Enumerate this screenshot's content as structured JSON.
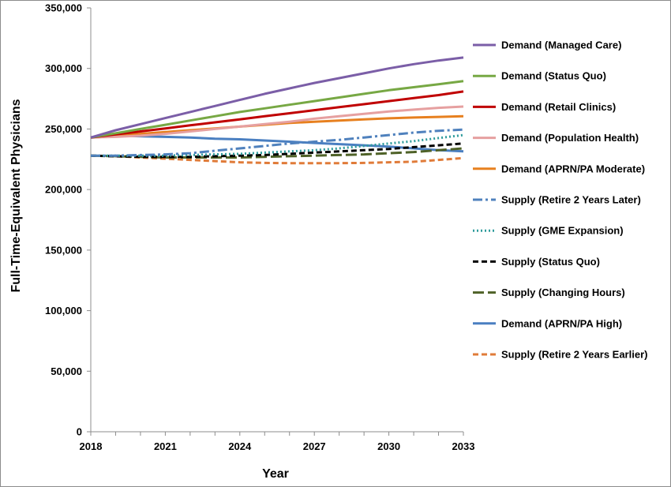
{
  "chart_data": {
    "type": "line",
    "title": "",
    "xlabel": "Year",
    "ylabel": "Full-Time-Equivalent Physicians",
    "xlim": [
      2018,
      2033
    ],
    "ylim": [
      0,
      350000
    ],
    "x_ticks": [
      2018,
      2021,
      2024,
      2027,
      2030,
      2033
    ],
    "x_tick_labels": [
      "2018",
      "2021",
      "2024",
      "2027",
      "2030",
      "2033"
    ],
    "y_ticks": [
      0,
      50000,
      100000,
      150000,
      200000,
      250000,
      300000,
      350000
    ],
    "y_tick_labels": [
      "0",
      "50,000",
      "100,000",
      "150,000",
      "200,000",
      "250,000",
      "300,000",
      "350,000"
    ],
    "grid": {
      "horizontal": false,
      "vertical": false
    },
    "legend_position": "right",
    "x": [
      2018,
      2019,
      2020,
      2021,
      2022,
      2023,
      2024,
      2025,
      2026,
      2027,
      2028,
      2029,
      2030,
      2031,
      2032,
      2033
    ],
    "series": [
      {
        "name": "Demand (Managed Care)",
        "color": "#7b5ea7",
        "style": "solid",
        "values": [
          243000,
          249000,
          254000,
          259000,
          264000,
          269000,
          274000,
          279000,
          283500,
          288000,
          292000,
          296000,
          300000,
          303500,
          306500,
          309000
        ]
      },
      {
        "name": "Demand (Status Quo)",
        "color": "#77a844",
        "style": "solid",
        "values": [
          243000,
          246500,
          250000,
          253500,
          257000,
          260500,
          264000,
          267000,
          270000,
          273000,
          276000,
          279000,
          282000,
          284500,
          287000,
          289500
        ]
      },
      {
        "name": "Demand (Retail Clinics)",
        "color": "#c00000",
        "style": "solid",
        "values": [
          243000,
          245500,
          248000,
          250500,
          253000,
          255500,
          258000,
          260500,
          263000,
          265500,
          268000,
          270500,
          273000,
          275500,
          278000,
          281000
        ]
      },
      {
        "name": "Demand (Population Health)",
        "color": "#e6a0a0",
        "style": "solid",
        "values": [
          243000,
          243500,
          244500,
          246000,
          248000,
          250000,
          252000,
          254000,
          256000,
          258500,
          260500,
          262500,
          264500,
          266000,
          267500,
          268500
        ]
      },
      {
        "name": "Demand (APRN/PA Moderate)",
        "color": "#e7801f",
        "style": "solid",
        "values": [
          243000,
          244500,
          246000,
          247500,
          249000,
          250500,
          252000,
          253500,
          255000,
          256000,
          257000,
          258000,
          258800,
          259500,
          260000,
          260500
        ]
      },
      {
        "name": "Supply (Retire 2 Years Later)",
        "color": "#4f81bd",
        "style": "dashdot",
        "values": [
          228000,
          228000,
          228500,
          229000,
          230000,
          232000,
          234000,
          236000,
          238000,
          239500,
          241000,
          243000,
          245000,
          247000,
          248500,
          249500
        ]
      },
      {
        "name": "Supply (GME Expansion)",
        "color": "#2f9c9c",
        "style": "dotted",
        "values": [
          228000,
          228000,
          228000,
          228000,
          228500,
          229000,
          229500,
          230500,
          231500,
          232500,
          234000,
          236000,
          238000,
          240000,
          242500,
          245000
        ]
      },
      {
        "name": "Supply (Status Quo)",
        "color": "#000000",
        "style": "dashed",
        "values": [
          228000,
          227500,
          227000,
          227000,
          227000,
          227500,
          228000,
          228500,
          229500,
          230500,
          231500,
          232500,
          233500,
          235000,
          236500,
          238000
        ]
      },
      {
        "name": "Supply (Changing Hours)",
        "color": "#4f6228",
        "style": "longdash",
        "values": [
          228000,
          227500,
          227000,
          226500,
          226500,
          226500,
          226500,
          227000,
          227500,
          228000,
          228500,
          229000,
          230000,
          231000,
          232500,
          234000
        ]
      },
      {
        "name": "Demand (APRN/PA High)",
        "color": "#4a7fc1",
        "style": "solid",
        "values": [
          243000,
          244500,
          244000,
          243500,
          243000,
          242000,
          241500,
          240500,
          239500,
          238500,
          237500,
          236500,
          235500,
          234000,
          232500,
          231500
        ]
      },
      {
        "name": "Supply (Retire 2 Years Earlier)",
        "color": "#e07b39",
        "style": "dashed",
        "values": [
          228000,
          227500,
          226500,
          225500,
          224500,
          223500,
          222500,
          222000,
          221800,
          221800,
          221800,
          222000,
          222500,
          223000,
          224500,
          226000
        ]
      }
    ]
  }
}
